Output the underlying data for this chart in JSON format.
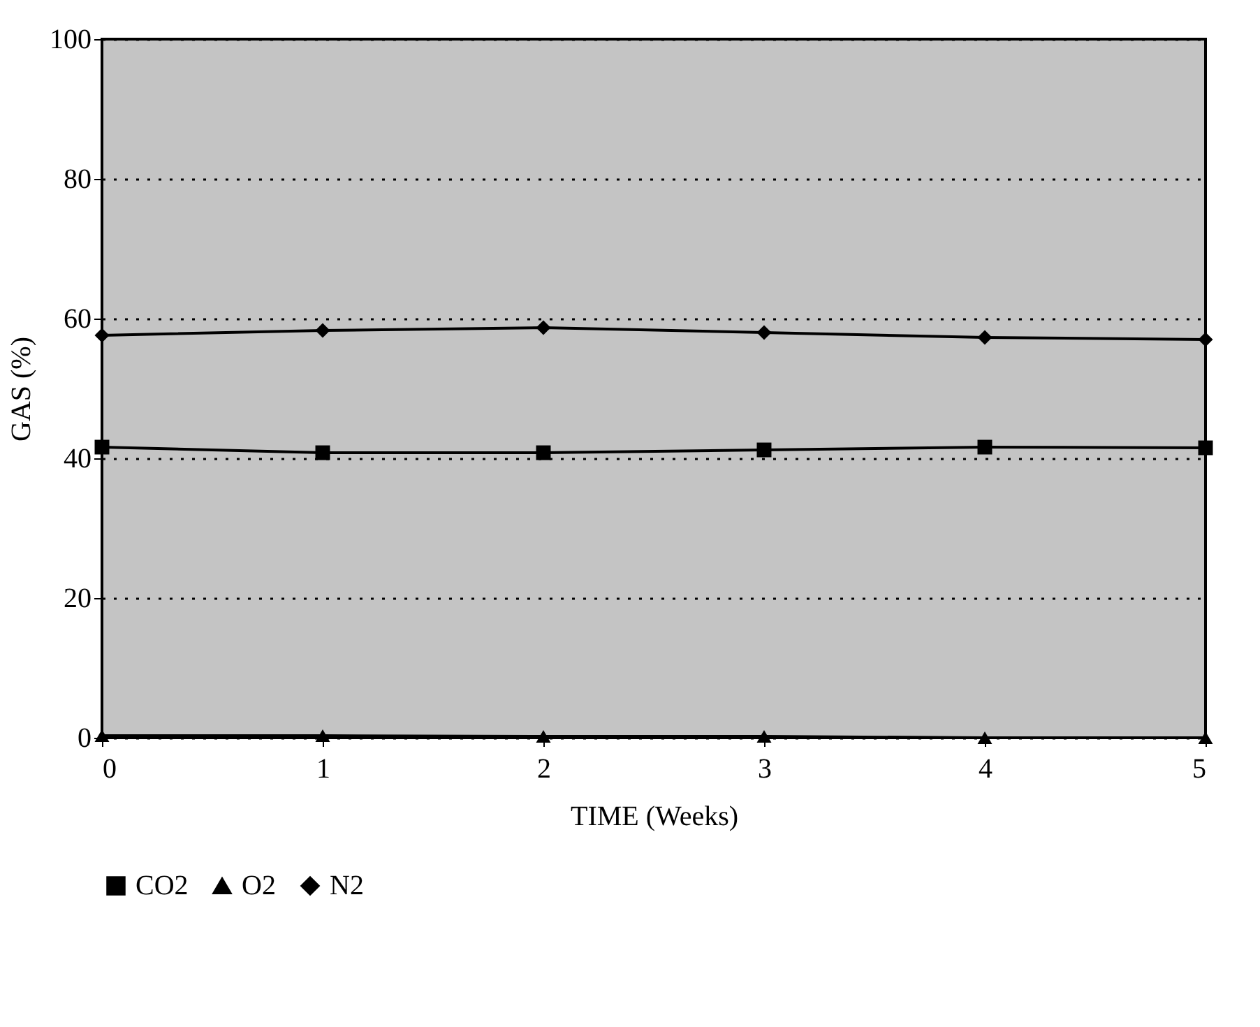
{
  "chart_data": {
    "type": "line",
    "xlabel": "TIME (Weeks)",
    "ylabel": "GAS (%)",
    "x": [
      0,
      1,
      2,
      3,
      4,
      5
    ],
    "xlim": [
      0,
      5
    ],
    "xticks": [
      0,
      1,
      2,
      3,
      4,
      5
    ],
    "ylim": [
      0,
      100
    ],
    "yticks": [
      0,
      20,
      40,
      60,
      80,
      100
    ],
    "grid": "y",
    "legend": "bottom",
    "line_style": "solid",
    "series": [
      {
        "name": "CO2",
        "color": "#000000",
        "marker": "square",
        "values": [
          41.6,
          40.8,
          40.8,
          41.2,
          41.6,
          41.5
        ]
      },
      {
        "name": "O2",
        "color": "#000000",
        "marker": "triangle",
        "values": [
          0.3,
          0.3,
          0.2,
          0.2,
          0.0,
          0.0
        ]
      },
      {
        "name": "N2",
        "color": "#000000",
        "marker": "diamond",
        "values": [
          57.6,
          58.3,
          58.7,
          58.0,
          57.3,
          57.0
        ]
      }
    ]
  }
}
